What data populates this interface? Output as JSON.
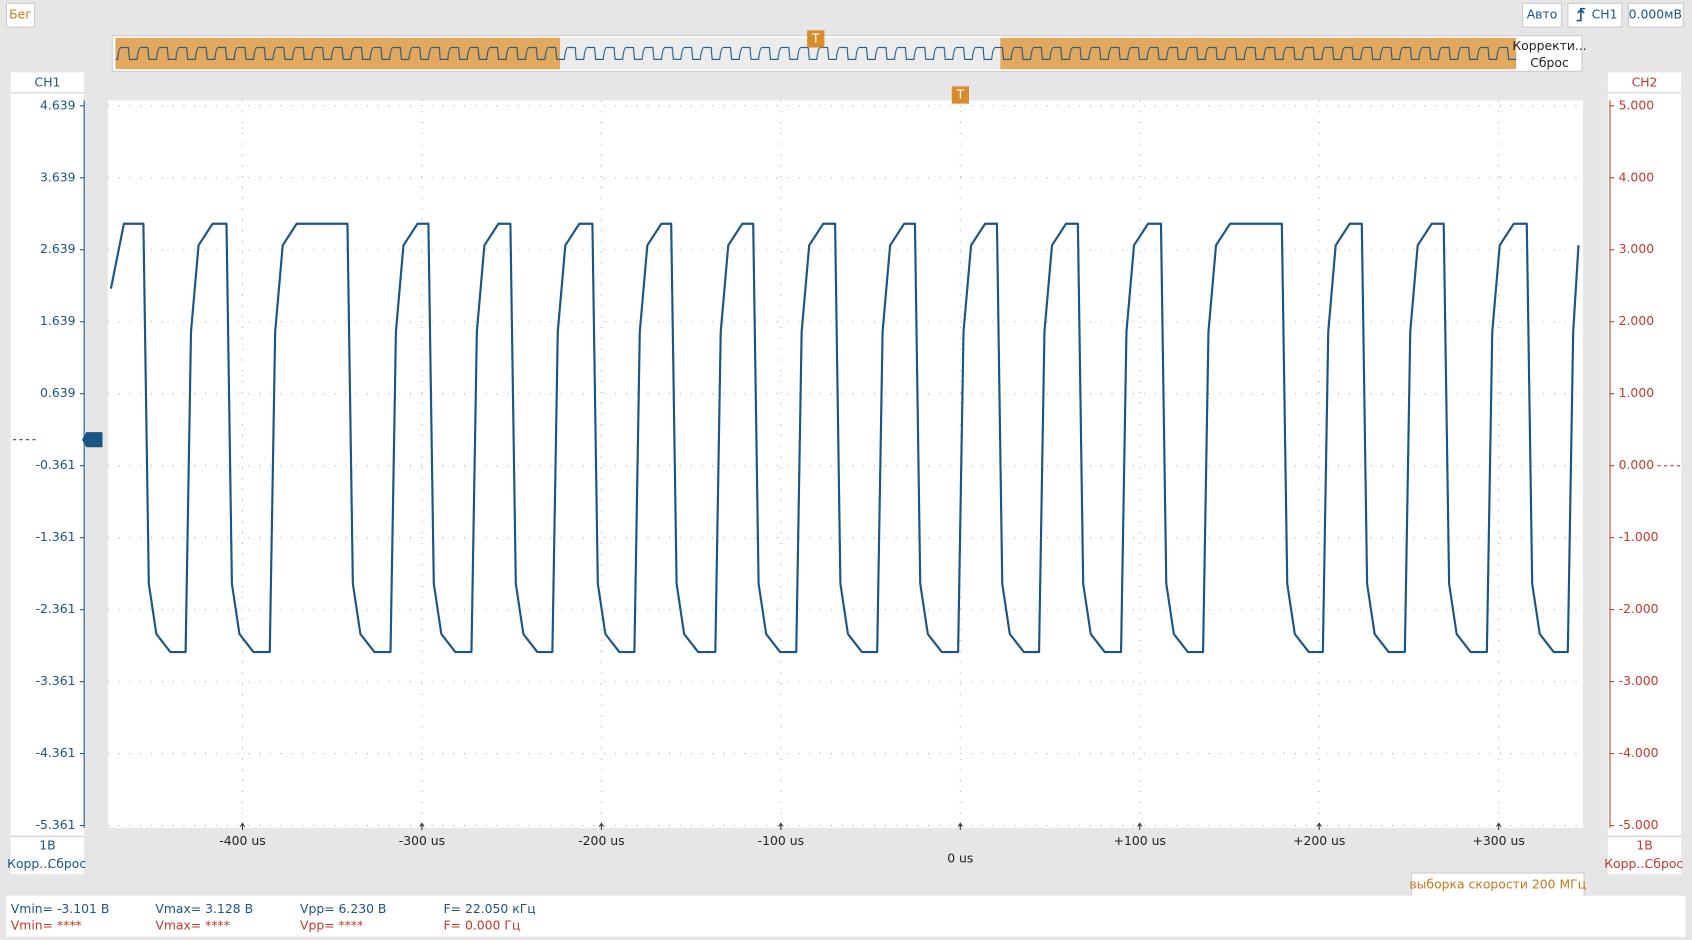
{
  "toolbar": {
    "mode": "Бег",
    "trigger_mode": "Авто",
    "trigger_source": "CH1",
    "trigger_level": "0.000мВ"
  },
  "overview": {
    "correct": "Корректи...",
    "reset": "Сброс",
    "trigger_marker": "T"
  },
  "chart_data": {
    "type": "line",
    "x": [
      -473.3,
      -466.1,
      -455.2,
      -452.2,
      -448.0,
      -440.2,
      -431.7,
      -428.7,
      -424.5,
      -416.7,
      -408.9,
      -405.9,
      -401.7,
      -393.9,
      -384.8,
      -381.8,
      -377.6,
      -369.8,
      -341.5,
      -338.5,
      -334.3,
      -326.5,
      -317.5,
      -314.5,
      -310.3,
      -302.5,
      -296.4,
      -293.4,
      -289.2,
      -281.4,
      -272.4,
      -269.4,
      -265.2,
      -257.4,
      -250.7,
      -247.7,
      -243.5,
      -235.7,
      -227.3,
      -224.3,
      -220.1,
      -212.3,
      -205.0,
      -202.0,
      -197.8,
      -190.0,
      -181.6,
      -178.6,
      -174.4,
      -166.6,
      -161.1,
      -158.1,
      -153.9,
      -146.1,
      -136.5,
      -133.5,
      -129.3,
      -121.5,
      -115.4,
      -112.4,
      -108.2,
      -100.4,
      -91.4,
      -88.4,
      -84.2,
      -76.4,
      -69.8,
      -66.8,
      -62.6,
      -54.8,
      -46.3,
      -43.3,
      -39.1,
      -31.3,
      -25.3,
      -22.3,
      -18.1,
      -10.3,
      -1.2,
      1.8,
      6.0,
      13.8,
      20.4,
      23.4,
      27.6,
      35.4,
      43.9,
      46.9,
      51.1,
      58.9,
      65.5,
      68.5,
      72.7,
      80.5,
      89.6,
      92.6,
      96.8,
      104.6,
      111.8,
      114.8,
      119.0,
      126.8,
      135.3,
      138.3,
      142.5,
      150.3,
      179.2,
      182.2,
      186.4,
      194.2,
      202.0,
      205.0,
      209.2,
      217.0,
      223.7,
      226.7,
      230.9,
      238.7,
      247.7,
      250.7,
      254.9,
      262.7,
      269.4,
      272.4,
      276.6,
      284.4,
      293.4,
      296.4,
      300.6,
      308.4,
      315.7,
      318.7,
      322.9,
      330.7,
      338.5,
      341.5,
      344.5
    ],
    "series": [
      {
        "name": "CH1",
        "color": "#1b5584",
        "values": [
          2.1,
          3.0,
          3.0,
          -2.0,
          -2.7,
          -2.95,
          -2.95,
          1.5,
          2.7,
          3.0,
          3.0,
          -2.0,
          -2.7,
          -2.95,
          -2.95,
          1.5,
          2.7,
          3.0,
          3.0,
          -2.0,
          -2.7,
          -2.95,
          -2.95,
          1.5,
          2.7,
          3.0,
          3.0,
          -2.0,
          -2.7,
          -2.95,
          -2.95,
          1.5,
          2.7,
          3.0,
          3.0,
          -2.0,
          -2.7,
          -2.95,
          -2.95,
          1.5,
          2.7,
          3.0,
          3.0,
          -2.0,
          -2.7,
          -2.95,
          -2.95,
          1.5,
          2.7,
          3.0,
          3.0,
          -2.0,
          -2.7,
          -2.95,
          -2.95,
          1.5,
          2.7,
          3.0,
          3.0,
          -2.0,
          -2.7,
          -2.95,
          -2.95,
          1.5,
          2.7,
          3.0,
          3.0,
          -2.0,
          -2.7,
          -2.95,
          -2.95,
          1.5,
          2.7,
          3.0,
          3.0,
          -2.0,
          -2.7,
          -2.95,
          -2.95,
          1.5,
          2.7,
          3.0,
          3.0,
          -2.0,
          -2.7,
          -2.95,
          -2.95,
          1.5,
          2.7,
          3.0,
          3.0,
          -2.0,
          -2.7,
          -2.95,
          -2.95,
          1.5,
          2.7,
          3.0,
          3.0,
          -2.0,
          -2.7,
          -2.95,
          -2.95,
          1.5,
          2.7,
          3.0,
          3.0,
          -2.0,
          -2.7,
          -2.95,
          -2.95,
          1.5,
          2.7,
          3.0,
          3.0,
          -2.0,
          -2.7,
          -2.95,
          -2.95,
          1.5,
          2.7,
          3.0,
          3.0,
          -2.0,
          -2.7,
          -2.95,
          -2.95,
          1.5,
          2.7,
          3.0,
          3.0,
          -2.0,
          -2.7,
          -2.95,
          -2.95,
          1.5,
          2.7
        ]
      }
    ],
    "xlim": [
      -475,
      347
    ],
    "xticks": [
      {
        "value": -400,
        "label": "-400 us"
      },
      {
        "value": -300,
        "label": "-300 us"
      },
      {
        "value": -200,
        "label": "-200 us"
      },
      {
        "value": -100,
        "label": "-100 us"
      },
      {
        "value": 0,
        "label": "0 us"
      },
      {
        "value": 100,
        "label": "+100 us"
      },
      {
        "value": 200,
        "label": "+200 us"
      },
      {
        "value": 300,
        "label": "+300 us"
      }
    ],
    "ylim": [
      -5.361,
      4.639
    ],
    "yticks": [
      4.639,
      3.639,
      2.639,
      1.639,
      0.639,
      -0.361,
      -1.361,
      -2.361,
      -3.361,
      -4.361,
      -5.361
    ],
    "y2label": "CH2",
    "y2lim": [
      -5,
      5
    ],
    "y2ticks": [
      {
        "value": 5,
        "label": "5.000"
      },
      {
        "value": 4,
        "label": "4.000"
      },
      {
        "value": 3,
        "label": "3.000"
      },
      {
        "value": 2,
        "label": "2.000"
      },
      {
        "value": 1,
        "label": "1.000"
      },
      {
        "value": 0,
        "label": "0.000"
      },
      {
        "value": -1,
        "label": "-1.000"
      },
      {
        "value": -2,
        "label": "-2.000"
      },
      {
        "value": -3,
        "label": "-3.000"
      },
      {
        "value": -4,
        "label": "-4.000"
      },
      {
        "value": -5,
        "label": "-5.000"
      }
    ],
    "grid": true
  },
  "ch1_panel": {
    "scale": "1В",
    "correct": "Корр...",
    "reset": "Сброс"
  },
  "ch2_panel": {
    "scale": "1В",
    "correct": "Корр...",
    "reset": "Сброс"
  },
  "sample_rate": "выборка скорости 200 МГц",
  "measurements": {
    "ch1": [
      "Vmin= -3.101 В",
      "Vmax= 3.128 В",
      "Vpp= 6.230 В",
      "F= 22.050 кГц"
    ],
    "ch2": [
      "Vmin= ****",
      "Vmax= ****",
      "Vpp= ****",
      "F= 0.000 Гц"
    ]
  }
}
